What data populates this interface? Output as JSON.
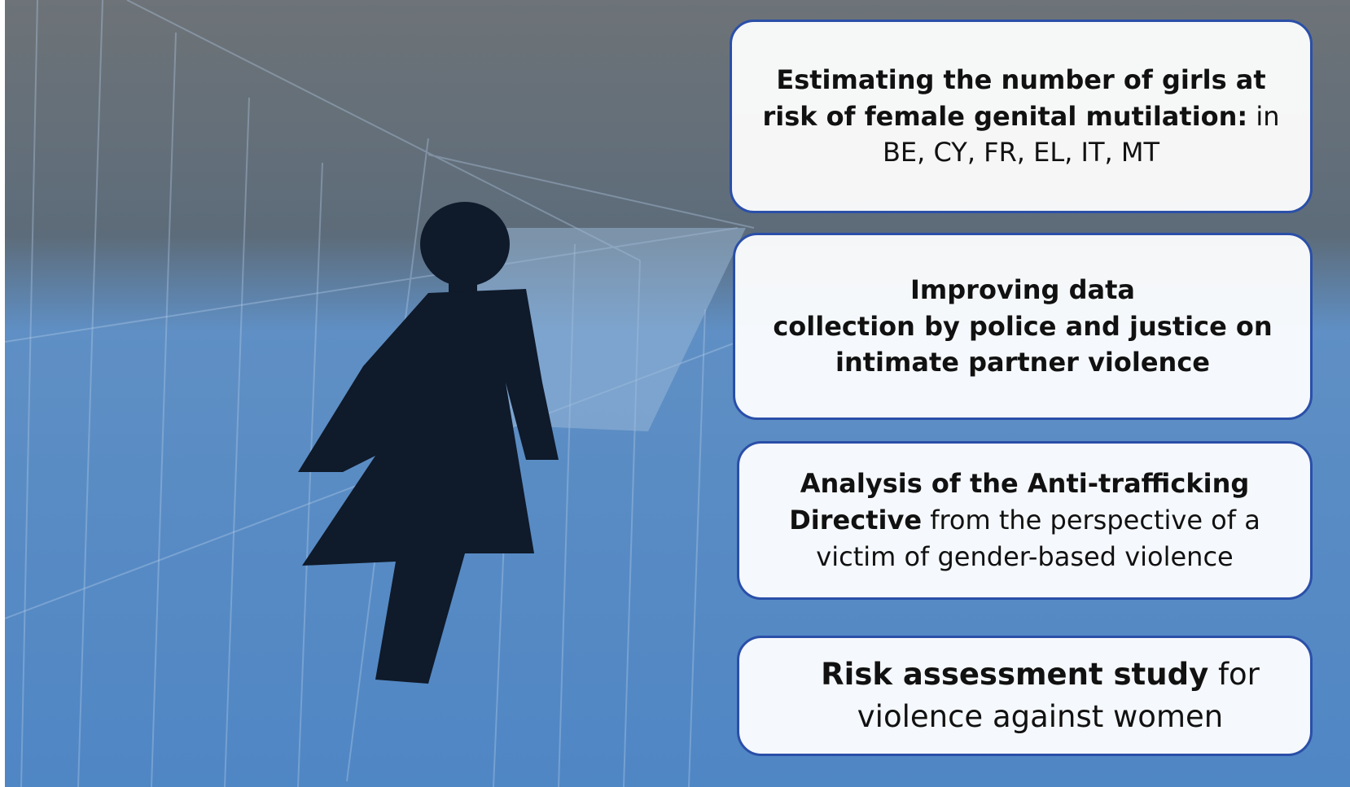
{
  "boxes": [
    {
      "bold": "Estimating the number of girls at risk of female genital mutilation:",
      "text": "in BE, CY, FR, EL, IT, MT"
    },
    {
      "lines": [
        "Improving data",
        "collection by police and justice on",
        "intimate partner violence"
      ]
    },
    {
      "bold": "Analysis of the Anti-trafficking Directive",
      "text": "from the perspective of a victim of gender-based violence"
    },
    {
      "bold": "Risk assessment study",
      "text": "for violence against women"
    }
  ]
}
